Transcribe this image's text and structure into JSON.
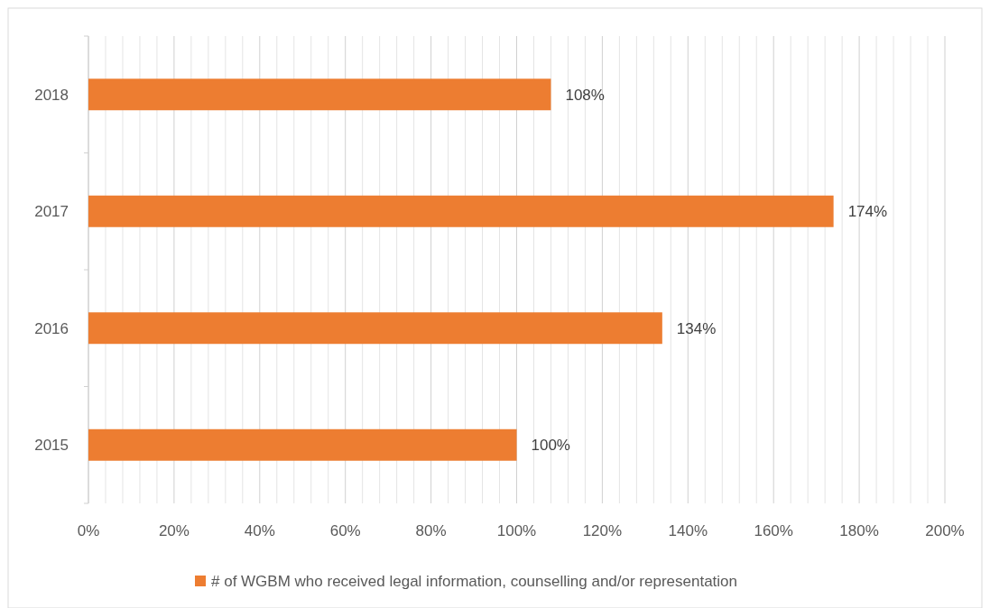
{
  "chart_data": {
    "type": "bar",
    "orientation": "horizontal",
    "categories": [
      "2018",
      "2017",
      "2016",
      "2015"
    ],
    "series": [
      {
        "name": "# of WGBM who received legal information, counselling and/or representation",
        "color": "#ed7d31",
        "values": [
          108,
          174,
          134,
          100
        ]
      }
    ],
    "value_labels": [
      "108%",
      "174%",
      "134%",
      "100%"
    ],
    "xlim": [
      0,
      200
    ],
    "xticks": [
      {
        "value": 0,
        "label": "0%"
      },
      {
        "value": 4,
        "label": null
      },
      {
        "value": 8,
        "label": null
      },
      {
        "value": 12,
        "label": null
      },
      {
        "value": 16,
        "label": null
      },
      {
        "value": 20,
        "label": "20%"
      },
      {
        "value": 24,
        "label": null
      },
      {
        "value": 28,
        "label": null
      },
      {
        "value": 32,
        "label": null
      },
      {
        "value": 36,
        "label": null
      },
      {
        "value": 40,
        "label": "40%"
      },
      {
        "value": 44,
        "label": null
      },
      {
        "value": 48,
        "label": null
      },
      {
        "value": 52,
        "label": null
      },
      {
        "value": 56,
        "label": null
      },
      {
        "value": 60,
        "label": "60%"
      },
      {
        "value": 64,
        "label": null
      },
      {
        "value": 68,
        "label": null
      },
      {
        "value": 72,
        "label": null
      },
      {
        "value": 76,
        "label": null
      },
      {
        "value": 80,
        "label": "80%"
      },
      {
        "value": 84,
        "label": null
      },
      {
        "value": 88,
        "label": null
      },
      {
        "value": 92,
        "label": null
      },
      {
        "value": 96,
        "label": null
      },
      {
        "value": 100,
        "label": "100%"
      },
      {
        "value": 104,
        "label": null
      },
      {
        "value": 108,
        "label": null
      },
      {
        "value": 112,
        "label": null
      },
      {
        "value": 116,
        "label": null
      },
      {
        "value": 120,
        "label": "120%"
      },
      {
        "value": 124,
        "label": null
      },
      {
        "value": 128,
        "label": null
      },
      {
        "value": 132,
        "label": null
      },
      {
        "value": 136,
        "label": null
      },
      {
        "value": 140,
        "label": "140%"
      },
      {
        "value": 144,
        "label": null
      },
      {
        "value": 148,
        "label": null
      },
      {
        "value": 152,
        "label": null
      },
      {
        "value": 156,
        "label": null
      },
      {
        "value": 160,
        "label": "160%"
      },
      {
        "value": 164,
        "label": null
      },
      {
        "value": 168,
        "label": null
      },
      {
        "value": 172,
        "label": null
      },
      {
        "value": 176,
        "label": null
      },
      {
        "value": 180,
        "label": "180%"
      },
      {
        "value": 184,
        "label": null
      },
      {
        "value": 188,
        "label": null
      },
      {
        "value": 192,
        "label": null
      },
      {
        "value": 196,
        "label": null
      },
      {
        "value": 200,
        "label": "200%"
      }
    ],
    "grid": "x",
    "legend": "bottom"
  }
}
